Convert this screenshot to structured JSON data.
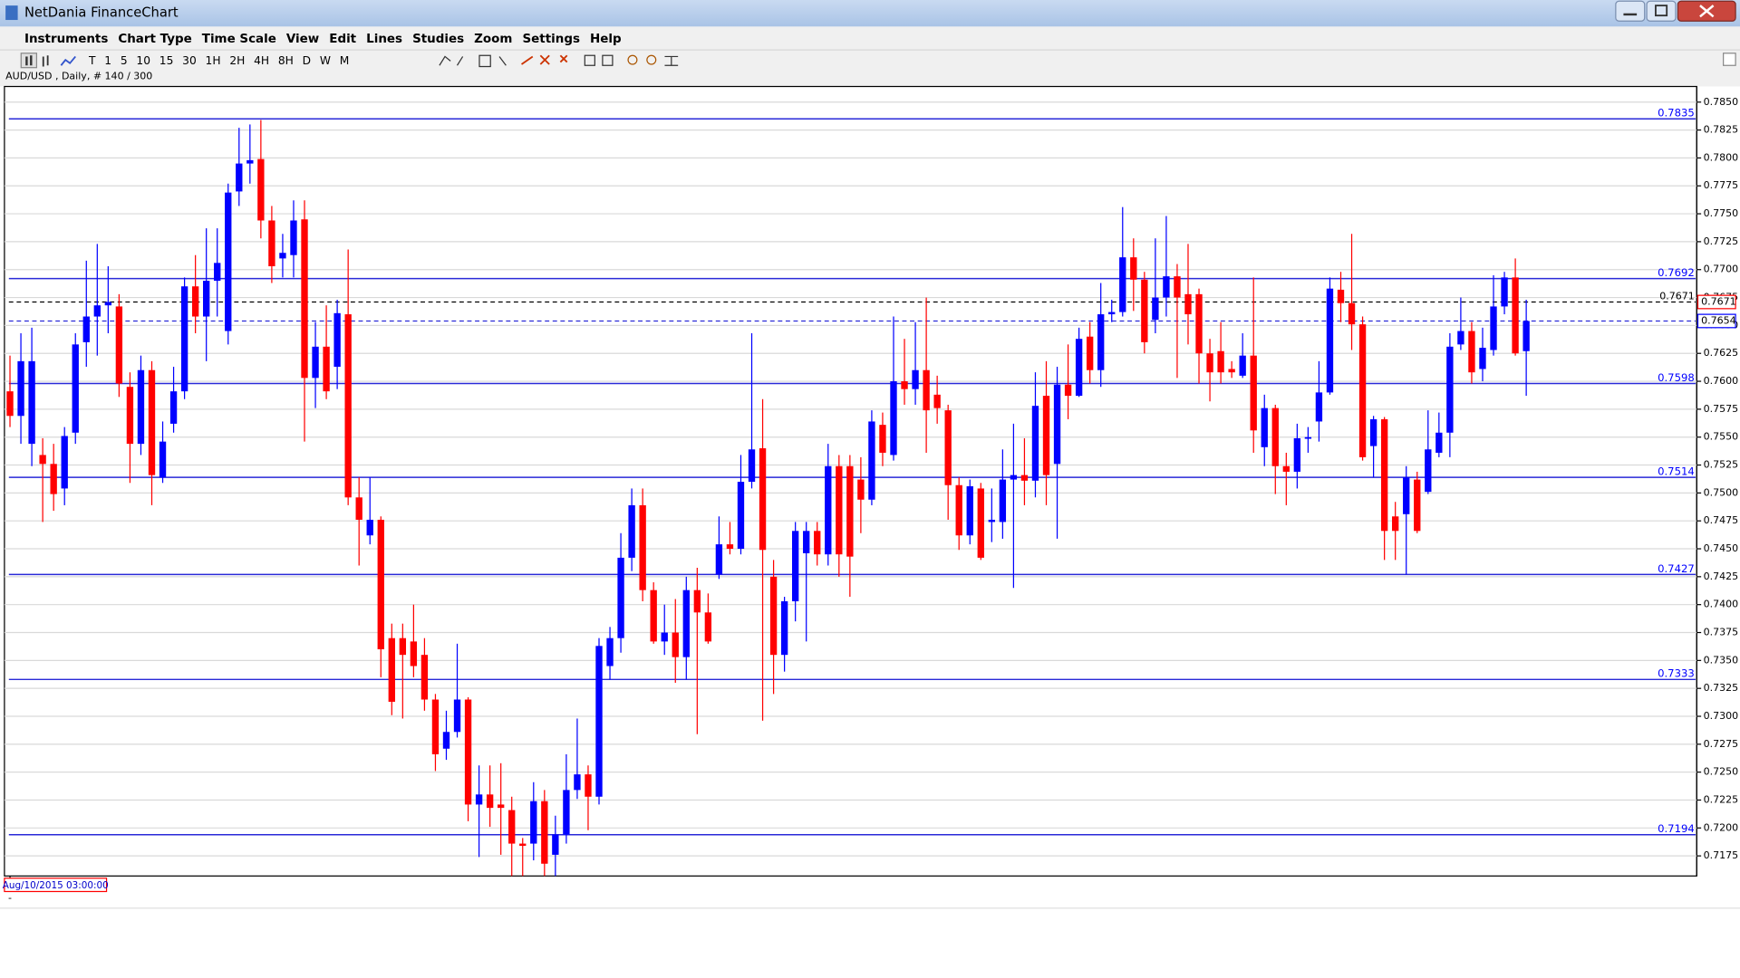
{
  "window": {
    "title": "NetDania FinanceChart"
  },
  "menu": [
    "Instruments",
    "Chart Type",
    "Time Scale",
    "View",
    "Edit",
    "Lines",
    "Studies",
    "Zoom",
    "Settings",
    "Help"
  ],
  "toolbar": {
    "timeframes": [
      "T",
      "1",
      "5",
      "10",
      "15",
      "30",
      "1H",
      "2H",
      "4H",
      "8H",
      "D",
      "W",
      "M"
    ]
  },
  "chart_data": {
    "type": "candlestick",
    "info": "AUD/USD , Daily, # 140 / 300",
    "cursor_label": "Aug/10/2015 03:00:00",
    "up_color": "#0000ff",
    "down_color": "#ff0000",
    "grid": true,
    "ylim": [
      0.7157,
      0.7862
    ],
    "yticks": [
      0.7175,
      {
        "value": 0.72,
        "label": "0.7200"
      },
      0.7225,
      {
        "value": 0.725,
        "label": "0.7250"
      },
      0.7275,
      {
        "value": 0.73,
        "label": "0.7300"
      },
      0.7325,
      {
        "value": 0.735,
        "label": "0.7350"
      },
      0.7375,
      {
        "value": 0.74,
        "label": "0.7400"
      },
      0.7425,
      {
        "value": 0.745,
        "label": "0.7450"
      },
      0.7475,
      {
        "value": 0.75,
        "label": "0.7500"
      },
      0.7525,
      {
        "value": 0.755,
        "label": "0.7550"
      },
      0.7575,
      {
        "value": 0.76,
        "label": "0.7600"
      },
      0.7625,
      {
        "value": 0.765,
        "label": "0.7650"
      },
      0.7675,
      {
        "value": 0.77,
        "label": "0.7700"
      },
      0.7725,
      {
        "value": 0.775,
        "label": "0.7750"
      },
      0.7775,
      {
        "value": 0.78,
        "label": "0.7800"
      },
      0.7825,
      {
        "value": 0.785,
        "label": "0.7850"
      }
    ],
    "levels": [
      0.7835,
      0.7692,
      0.7598,
      0.7514,
      0.7427,
      0.7333,
      0.7194
    ],
    "level_color": "#2a2ad8",
    "price_markers": [
      {
        "value": 0.7671,
        "line_color": "#000000",
        "box_color": "#ff0000"
      },
      {
        "value": 0.7654,
        "line_color": "#2a2ad8",
        "box_color": "#0000ff"
      }
    ],
    "categories": [
      "-"
    ],
    "months": [
      "-"
    ],
    "open": [
      0.7591,
      0.7569,
      0.7544,
      0.7534,
      0.7526,
      0.7504,
      0.7554,
      0.7635,
      0.7658,
      0.7668,
      0.7667,
      0.7595,
      0.7544,
      0.761,
      0.7514,
      0.7562,
      0.7591,
      0.7685,
      0.7658,
      0.769,
      0.7645,
      0.777,
      0.7795,
      0.7799,
      0.7744,
      0.771,
      0.7713,
      0.7745,
      0.7603,
      0.7631,
      0.7613,
      0.766,
      0.7496,
      0.7462,
      0.7476,
      0.737,
      0.737,
      0.7367,
      0.7355,
      0.7315,
      0.7271,
      0.7286,
      0.7315,
      0.7221,
      0.723,
      0.7221,
      0.7216,
      0.7186,
      0.7186,
      0.7224,
      0.7176,
      0.7194,
      0.7234,
      0.7248,
      0.7228,
      0.7345,
      0.737,
      0.7442,
      0.7489,
      0.7413,
      0.7367,
      0.7375,
      0.7353,
      0.7413,
      0.7393,
      0.7427,
      0.7454,
      0.745,
      0.751,
      0.754,
      0.7425,
      0.7355,
      0.7403,
      0.7446,
      0.7466,
      0.7445,
      0.7524,
      0.7524,
      0.7512,
      0.7494,
      0.7561,
      0.7534,
      0.76,
      0.7593,
      0.761,
      0.7588,
      0.7574,
      0.7507,
      0.7462,
      0.7504,
      0.7474,
      0.7474,
      0.7512,
      0.7516,
      0.7511,
      0.7587,
      0.7526,
      0.7597,
      0.7587,
      0.764,
      0.761,
      0.766,
      0.7662,
      0.7711,
      0.7691,
      0.7655,
      0.7675,
      0.7694,
      0.7678,
      0.7678,
      0.7625,
      0.7627,
      0.7611,
      0.7605,
      0.7623,
      0.7541,
      0.7576,
      0.7524,
      0.7519,
      0.7549,
      0.7564,
      0.759,
      0.7682,
      0.767,
      0.7651,
      0.7542,
      0.7566,
      0.7479,
      0.7481,
      0.7512,
      0.7501,
      0.7536,
      0.7554,
      0.7633,
      0.7645,
      0.7611,
      0.7628,
      0.7667,
      0.7693,
      0.7627,
      null,
      null,
      null,
      null,
      null,
      null,
      null,
      null,
      null,
      null,
      null
    ],
    "high": [
      0.7623,
      0.7643,
      0.7648,
      0.7549,
      0.7544,
      0.7559,
      0.7643,
      0.7708,
      0.7723,
      0.7703,
      0.7678,
      0.7608,
      0.7623,
      0.7618,
      0.7564,
      0.7613,
      0.7693,
      0.7713,
      0.7737,
      0.7737,
      0.7777,
      0.7827,
      0.783,
      0.7834,
      0.7757,
      0.7732,
      0.7762,
      0.7762,
      0.7653,
      0.7668,
      0.7673,
      0.7718,
      0.7514,
      0.7514,
      0.7479,
      0.7383,
      0.7383,
      0.74,
      0.737,
      0.732,
      0.7305,
      0.7365,
      0.7317,
      0.7256,
      0.7256,
      0.7258,
      0.7228,
      0.7191,
      0.7241,
      0.7234,
      0.7211,
      0.7266,
      0.7298,
      0.7256,
      0.737,
      0.738,
      0.7464,
      0.7504,
      0.7504,
      0.742,
      0.74,
      0.7405,
      0.7425,
      0.7433,
      0.741,
      0.7479,
      0.7474,
      0.7534,
      0.7643,
      0.7584,
      0.744,
      0.7407,
      0.7474,
      0.7474,
      0.7474,
      0.7544,
      0.7534,
      0.7534,
      0.7532,
      0.7574,
      0.7572,
      0.7658,
      0.7638,
      0.7653,
      0.7675,
      0.7605,
      0.7579,
      0.7514,
      0.7512,
      0.7509,
      0.7504,
      0.7539,
      0.7562,
      0.7549,
      0.7608,
      0.7618,
      0.7613,
      0.7633,
      0.7648,
      0.7653,
      0.7688,
      0.7673,
      0.7756,
      0.7728,
      0.7698,
      0.7728,
      0.7748,
      0.7705,
      0.7723,
      0.7683,
      0.7638,
      0.7653,
      0.7618,
      0.7643,
      0.7693,
      0.7588,
      0.7579,
      0.7536,
      0.7562,
      0.7559,
      0.7618,
      0.7693,
      0.7698,
      0.7732,
      0.7658,
      0.7569,
      0.7568,
      0.7492,
      0.7524,
      0.7519,
      0.7574,
      0.7572,
      0.7643,
      0.7675,
      0.7653,
      0.7648,
      0.7695,
      0.7698,
      0.771,
      0.7673,
      null,
      null,
      null,
      null,
      null,
      null,
      null,
      null,
      null,
      null,
      null
    ],
    "low": [
      0.7559,
      0.7544,
      0.7524,
      0.7474,
      0.7484,
      0.7489,
      0.7544,
      0.7613,
      0.7623,
      0.7643,
      0.7586,
      0.7509,
      0.7534,
      0.7489,
      0.7509,
      0.7554,
      0.7584,
      0.7643,
      0.7618,
      0.7658,
      0.7633,
      0.7757,
      0.7777,
      0.7728,
      0.7688,
      0.7693,
      0.7693,
      0.7546,
      0.7576,
      0.7584,
      0.7593,
      0.7489,
      0.7435,
      0.7454,
      0.7335,
      0.7301,
      0.7298,
      0.7335,
      0.7305,
      0.7251,
      0.7261,
      0.7281,
      0.7206,
      0.7174,
      0.7201,
      0.7176,
      0.7157,
      0.7157,
      0.7171,
      0.7157,
      0.7157,
      0.7186,
      0.7226,
      0.7198,
      0.7221,
      0.7333,
      0.7357,
      0.743,
      0.7403,
      0.7365,
      0.7355,
      0.733,
      0.7333,
      0.7284,
      0.7365,
      0.7423,
      0.7445,
      0.7445,
      0.7504,
      0.7296,
      0.732,
      0.734,
      0.7385,
      0.7367,
      0.7435,
      0.7435,
      0.7425,
      0.7407,
      0.7464,
      0.7489,
      0.7524,
      0.7529,
      0.7579,
      0.7579,
      0.7536,
      0.7562,
      0.7476,
      0.7449,
      0.7454,
      0.744,
      0.7456,
      0.7459,
      0.7415,
      0.7489,
      0.7496,
      0.7489,
      0.7459,
      0.7566,
      0.7586,
      0.7598,
      0.7595,
      0.7653,
      0.7658,
      0.7663,
      0.7625,
      0.7643,
      0.7658,
      0.7603,
      0.7633,
      0.7598,
      0.7582,
      0.7598,
      0.7603,
      0.7603,
      0.7536,
      0.7524,
      0.7499,
      0.7489,
      0.7504,
      0.7536,
      0.7546,
      0.7588,
      0.7653,
      0.7628,
      0.7529,
      0.7514,
      0.744,
      0.744,
      0.7427,
      0.7464,
      0.7499,
      0.7532,
      0.7532,
      0.7628,
      0.7598,
      0.76,
      0.7623,
      0.766,
      0.7623,
      0.7587,
      null,
      null,
      null,
      null,
      null,
      null,
      null,
      null,
      null,
      null,
      null
    ],
    "close": [
      0.7569,
      0.7618,
      0.7618,
      0.7526,
      0.7499,
      0.7551,
      0.7633,
      0.7658,
      0.7668,
      0.7671,
      0.7598,
      0.7544,
      0.761,
      0.7516,
      0.7546,
      0.7591,
      0.7685,
      0.7658,
      0.769,
      0.7706,
      0.7769,
      0.7795,
      0.7798,
      0.7744,
      0.7703,
      0.7715,
      0.7744,
      0.7603,
      0.7631,
      0.7591,
      0.7661,
      0.7496,
      0.7476,
      0.7476,
      0.736,
      0.7313,
      0.7355,
      0.7345,
      0.7315,
      0.7266,
      0.7286,
      0.7315,
      0.7221,
      0.723,
      0.7218,
      0.7218,
      0.7186,
      0.7184,
      0.7224,
      0.7168,
      0.7194,
      0.7234,
      0.7248,
      0.7228,
      0.7363,
      0.737,
      0.7442,
      0.7489,
      0.7413,
      0.7367,
      0.7375,
      0.7353,
      0.7413,
      0.7393,
      0.7367,
      0.7454,
      0.745,
      0.751,
      0.7539,
      0.7449,
      0.7355,
      0.7403,
      0.7466,
      0.7466,
      0.7445,
      0.7524,
      0.7445,
      0.7443,
      0.7494,
      0.7564,
      0.7536,
      0.76,
      0.7593,
      0.761,
      0.7574,
      0.7576,
      0.7507,
      0.7462,
      0.7506,
      0.7442,
      0.7476,
      0.7512,
      0.7516,
      0.7511,
      0.7578,
      0.7516,
      0.7597,
      0.7587,
      0.7638,
      0.761,
      0.766,
      0.7662,
      0.7711,
      0.7691,
      0.7635,
      0.7675,
      0.7694,
      0.7675,
      0.766,
      0.7625,
      0.7608,
      0.7608,
      0.7608,
      0.7623,
      0.7556,
      0.7576,
      0.7524,
      0.7519,
      0.7549,
      0.755,
      0.759,
      0.7683,
      0.767,
      0.7651,
      0.7532,
      0.7566,
      0.7466,
      0.7466,
      0.7514,
      0.7466,
      0.7539,
      0.7554,
      0.7631,
      0.7645,
      0.7608,
      0.763,
      0.7667,
      0.7693,
      0.7625,
      0.7654,
      null,
      null,
      null,
      null,
      null,
      null,
      null,
      null,
      null,
      null,
      null
    ]
  }
}
